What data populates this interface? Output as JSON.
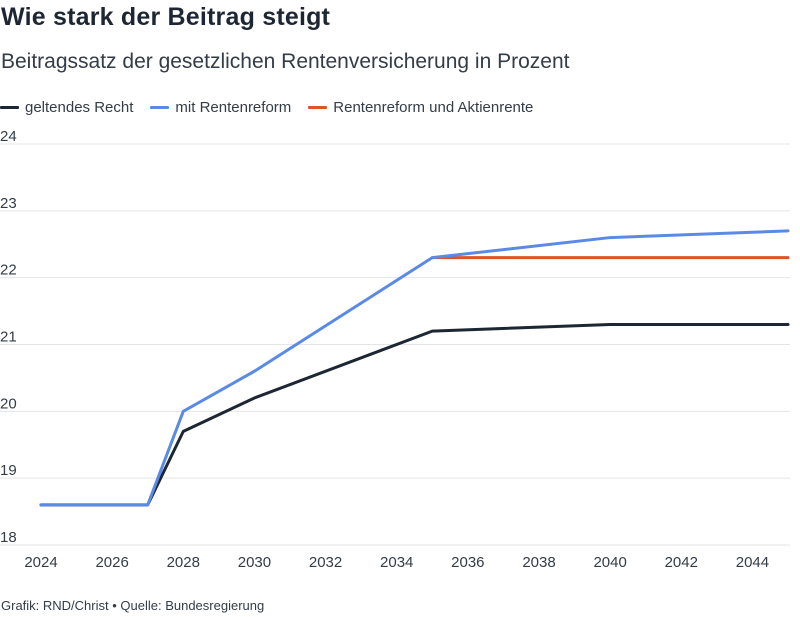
{
  "header": {
    "title": "Wie stark der Beitrag steigt",
    "subtitle": "Beitragssatz der gesetzlichen Rentenversicherung in Prozent"
  },
  "legend": [
    {
      "label": "geltendes Recht",
      "color": "#1d2733"
    },
    {
      "label": "mit Rentenreform",
      "color": "#5a8ae6"
    },
    {
      "label": "Rentenreform und Aktienrente",
      "color": "#e0522a"
    }
  ],
  "footer": {
    "credit": "Grafik: RND/Christ • Quelle: Bundesregierung"
  },
  "chart_data": {
    "type": "line",
    "title": "Wie stark der Beitrag steigt",
    "subtitle": "Beitragssatz der gesetzlichen Rentenversicherung in Prozent",
    "xlabel": "",
    "ylabel": "",
    "xlim": [
      2024,
      2045
    ],
    "ylim": [
      18,
      24
    ],
    "x_ticks": [
      "2024",
      "2026",
      "2028",
      "2030",
      "2032",
      "2034",
      "2036",
      "2038",
      "2040",
      "2042",
      "2044"
    ],
    "y_ticks": [
      "18",
      "19",
      "20",
      "21",
      "22",
      "23",
      "24"
    ],
    "grid": "horizontal",
    "legend_position": "top-left",
    "series": [
      {
        "name": "geltendes Recht",
        "color": "#1d2733",
        "points": [
          [
            2024,
            18.6
          ],
          [
            2027,
            18.6
          ],
          [
            2028,
            19.7
          ],
          [
            2030,
            20.2
          ],
          [
            2035,
            21.2
          ],
          [
            2040,
            21.3
          ],
          [
            2045,
            21.3
          ]
        ]
      },
      {
        "name": "mit Rentenreform",
        "color": "#5a8ae6",
        "points": [
          [
            2024,
            18.6
          ],
          [
            2027,
            18.6
          ],
          [
            2028,
            20.0
          ],
          [
            2030,
            20.6
          ],
          [
            2035,
            22.3
          ],
          [
            2040,
            22.6
          ],
          [
            2045,
            22.7
          ]
        ]
      },
      {
        "name": "Rentenreform und Aktienrente",
        "color": "#e0522a",
        "points": [
          [
            2035,
            22.3
          ],
          [
            2045,
            22.3
          ]
        ]
      }
    ]
  }
}
